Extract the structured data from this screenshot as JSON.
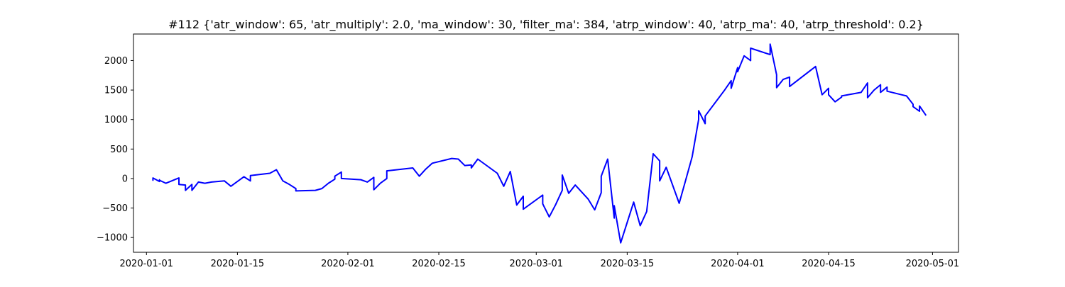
{
  "chart_data": {
    "type": "line",
    "title": "#112 {'atr_window': 65, 'atr_multiply': 2.0, 'ma_window': 30, 'filter_ma': 384, 'atrp_window': 40, 'atrp_ma': 40, 'atrp_threshold': 0.2}",
    "xlabel": "",
    "ylabel": "",
    "xlim": [
      "2019-12-30",
      "2020-05-05"
    ],
    "ylim": [
      -1250,
      2450
    ],
    "x_ticks": [
      "2020-01-01",
      "2020-01-15",
      "2020-02-01",
      "2020-02-15",
      "2020-03-01",
      "2020-03-15",
      "2020-04-01",
      "2020-04-15",
      "2020-05-01"
    ],
    "y_ticks": [
      -1000,
      -500,
      0,
      500,
      1000,
      1500,
      2000
    ],
    "grid": false,
    "legend": "none",
    "line_color": "#0000ff",
    "series": [
      {
        "x": [
          "2020-01-02",
          "2020-01-02",
          "2020-01-02",
          "2020-01-03",
          "2020-01-03",
          "2020-01-03",
          "2020-01-04",
          "2020-01-06",
          "2020-01-06",
          "2020-01-07",
          "2020-01-07",
          "2020-01-08",
          "2020-01-08",
          "2020-01-09",
          "2020-01-09",
          "2020-01-10",
          "2020-01-11",
          "2020-01-13",
          "2020-01-14",
          "2020-01-15",
          "2020-01-16",
          "2020-01-17",
          "2020-01-17",
          "2020-01-20",
          "2020-01-21",
          "2020-01-22",
          "2020-01-23",
          "2020-01-24",
          "2020-01-24",
          "2020-01-27",
          "2020-01-28",
          "2020-01-29",
          "2020-01-30",
          "2020-01-30",
          "2020-01-31",
          "2020-01-31",
          "2020-02-03",
          "2020-02-04",
          "2020-02-05",
          "2020-02-05",
          "2020-02-06",
          "2020-02-07",
          "2020-02-07",
          "2020-02-11",
          "2020-02-12",
          "2020-02-13",
          "2020-02-14",
          "2020-02-17",
          "2020-02-18",
          "2020-02-19",
          "2020-02-20",
          "2020-02-20",
          "2020-02-21",
          "2020-02-24",
          "2020-02-25",
          "2020-02-26",
          "2020-02-27",
          "2020-02-28",
          "2020-02-28",
          "2020-03-02",
          "2020-03-02",
          "2020-03-03",
          "2020-03-04",
          "2020-03-05",
          "2020-03-05",
          "2020-03-06",
          "2020-03-07",
          "2020-03-09",
          "2020-03-10",
          "2020-03-11",
          "2020-03-11",
          "2020-03-12",
          "2020-03-13",
          "2020-03-13",
          "2020-03-14",
          "2020-03-16",
          "2020-03-17",
          "2020-03-18",
          "2020-03-19",
          "2020-03-20",
          "2020-03-20",
          "2020-03-21",
          "2020-03-23",
          "2020-03-24",
          "2020-03-25",
          "2020-03-26",
          "2020-03-26",
          "2020-03-27",
          "2020-03-27",
          "2020-03-30",
          "2020-03-31",
          "2020-03-31",
          "2020-04-01",
          "2020-04-01",
          "2020-04-02",
          "2020-04-03",
          "2020-04-03",
          "2020-04-06",
          "2020-04-06",
          "2020-04-07",
          "2020-04-07",
          "2020-04-08",
          "2020-04-09",
          "2020-04-09",
          "2020-04-13",
          "2020-04-14",
          "2020-04-15",
          "2020-04-15",
          "2020-04-16",
          "2020-04-17",
          "2020-04-17",
          "2020-04-20",
          "2020-04-21",
          "2020-04-21",
          "2020-04-22",
          "2020-04-23",
          "2020-04-23",
          "2020-04-24",
          "2020-04-24",
          "2020-04-27",
          "2020-04-28",
          "2020-04-28",
          "2020-04-29",
          "2020-04-29",
          "2020-04-30"
        ],
        "y": [
          0,
          -30,
          10,
          -50,
          -20,
          -30,
          -80,
          10,
          -100,
          -110,
          -200,
          -100,
          -200,
          -60,
          -60,
          -80,
          -60,
          -40,
          -130,
          -50,
          30,
          -40,
          50,
          90,
          150,
          -40,
          -100,
          -170,
          -210,
          -200,
          -170,
          -80,
          -10,
          40,
          110,
          0,
          -20,
          -60,
          20,
          -190,
          -80,
          0,
          130,
          180,
          40,
          160,
          260,
          340,
          330,
          220,
          230,
          180,
          330,
          90,
          -130,
          120,
          -450,
          -300,
          -520,
          -280,
          -430,
          -650,
          -440,
          -200,
          60,
          -250,
          -110,
          -350,
          -530,
          -240,
          40,
          330,
          -670,
          -460,
          -1090,
          -400,
          -800,
          -560,
          420,
          300,
          -40,
          190,
          -420,
          -30,
          370,
          1000,
          1150,
          930,
          1060,
          1500,
          1660,
          1530,
          1880,
          1810,
          2080,
          2000,
          2210,
          2100,
          2280,
          1760,
          1540,
          1680,
          1720,
          1560,
          1900,
          1420,
          1530,
          1420,
          1300,
          1380,
          1400,
          1460,
          1620,
          1370,
          1500,
          1590,
          1460,
          1550,
          1480,
          1400,
          1260,
          1220,
          1140,
          1230,
          1070
        ]
      }
    ]
  }
}
